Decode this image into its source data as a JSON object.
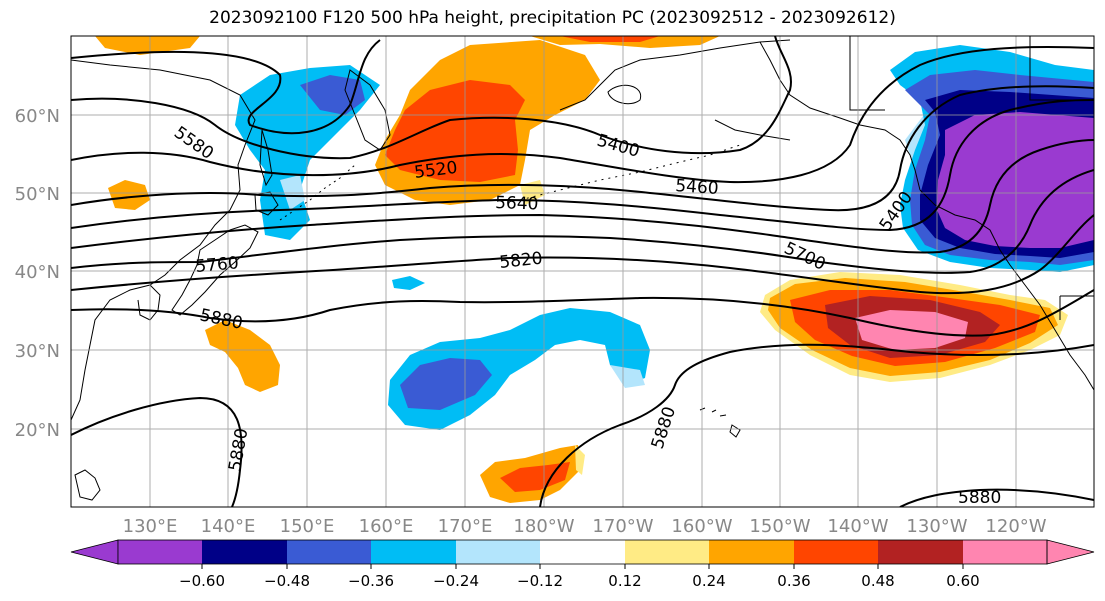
{
  "title": "2023092100 F120 500 hPa height, precipitation PC (2023092512 - 2023092612)",
  "lat_labels": [
    "60°N",
    "50°N",
    "40°N",
    "30°N",
    "20°N"
  ],
  "lon_labels": [
    "130°E",
    "140°E",
    "150°E",
    "160°E",
    "170°E",
    "180°W",
    "170°W",
    "160°W",
    "150°W",
    "140°W",
    "130°W",
    "120°W"
  ],
  "contour_labels": [
    "5580",
    "5400",
    "5520",
    "5460",
    "5640",
    "5400",
    "5760",
    "5820",
    "5700",
    "5880",
    "5880",
    "5880",
    "5880"
  ],
  "colorbar": {
    "ticks": [
      "−0.60",
      "−0.48",
      "−0.36",
      "−0.24",
      "−0.12",
      "0.12",
      "0.24",
      "0.36",
      "0.48",
      "0.60"
    ],
    "colors": [
      "#9a3ad0",
      "#000087",
      "#3a5bd4",
      "#00bdf5",
      "#b3e5fc",
      "#ffffff",
      "#ffeb85",
      "#ffa500",
      "#ff4500",
      "#b22222",
      "#ff85b0"
    ]
  }
}
